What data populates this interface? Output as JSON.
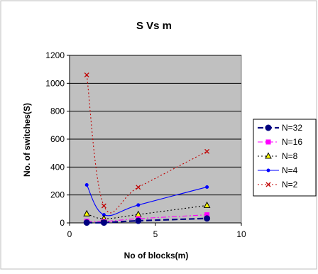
{
  "chart_data": {
    "type": "scatter",
    "title": "S Vs m",
    "xlabel": "No of blocks(m)",
    "ylabel": "No. of switches(S)",
    "xlim": [
      0,
      10
    ],
    "ylim": [
      0,
      1200
    ],
    "xticks": [
      "0",
      "5",
      "10"
    ],
    "yticks": [
      "0",
      "200",
      "400",
      "600",
      "800",
      "1000",
      "1200"
    ],
    "grid": true,
    "plot_background": "#c0c0c0",
    "legend_position": "right",
    "series": [
      {
        "name": "N=32",
        "color": "#000080",
        "marker": "circle",
        "line_style": "dashed",
        "x": [
          1,
          2,
          4,
          8
        ],
        "y": [
          2,
          2,
          15,
          32
        ]
      },
      {
        "name": "N=16",
        "color": "#ff00ff",
        "marker": "square",
        "line_style": "dash-dot",
        "x": [
          1,
          2,
          4,
          8
        ],
        "y": [
          12,
          10,
          30,
          58
        ]
      },
      {
        "name": "N=8",
        "color": "#000000",
        "marker-fill": "#ffff00",
        "marker": "triangle",
        "line_style": "dotted",
        "x": [
          1,
          2,
          4,
          8
        ],
        "y": [
          65,
          30,
          60,
          125
        ]
      },
      {
        "name": "N=4",
        "color": "#0000ff",
        "marker": "dot",
        "line_style": "solid",
        "x": [
          1,
          2,
          4,
          8
        ],
        "y": [
          272,
          58,
          128,
          257
        ]
      },
      {
        "name": "N=2",
        "color": "#c00000",
        "marker": "x",
        "line_style": "dotted",
        "x": [
          1,
          2,
          4,
          8
        ],
        "y": [
          1060,
          122,
          255,
          512
        ]
      }
    ]
  }
}
